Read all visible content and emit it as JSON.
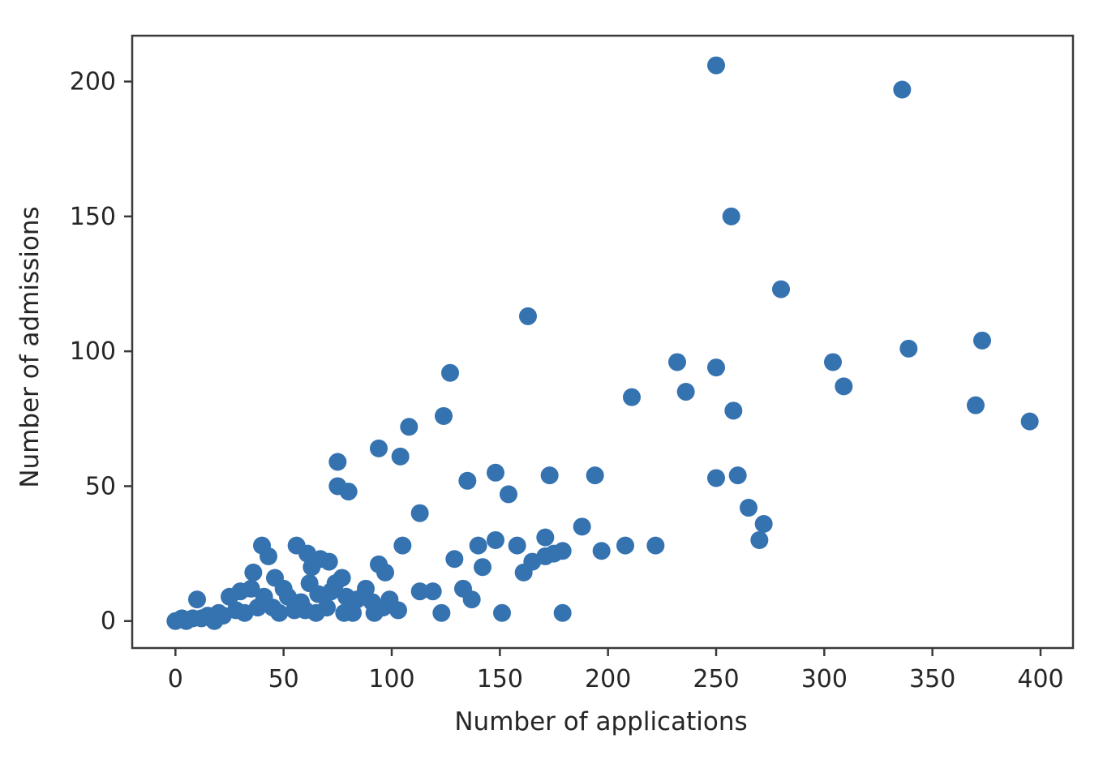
{
  "chart_data": {
    "type": "scatter",
    "xlabel": "Number of applications",
    "ylabel": "Number of admissions",
    "xlim": [
      -20,
      415
    ],
    "ylim": [
      -10,
      217
    ],
    "xticks": [
      0,
      50,
      100,
      150,
      200,
      250,
      300,
      350,
      400
    ],
    "yticks": [
      0,
      50,
      100,
      150,
      200
    ],
    "grid": false,
    "marker_color": "#3572b0",
    "series": [
      {
        "points": [
          [
            250,
            206
          ],
          [
            336,
            197
          ],
          [
            257,
            150
          ],
          [
            280,
            123
          ],
          [
            163,
            113
          ],
          [
            373,
            104
          ],
          [
            339,
            101
          ],
          [
            232,
            96
          ],
          [
            304,
            96
          ],
          [
            250,
            94
          ],
          [
            127,
            92
          ],
          [
            309,
            87
          ],
          [
            236,
            85
          ],
          [
            211,
            83
          ],
          [
            370,
            80
          ],
          [
            258,
            78
          ],
          [
            124,
            76
          ],
          [
            395,
            74
          ],
          [
            108,
            72
          ],
          [
            94,
            64
          ],
          [
            104,
            61
          ],
          [
            75,
            59
          ],
          [
            148,
            55
          ],
          [
            173,
            54
          ],
          [
            194,
            54
          ],
          [
            250,
            53
          ],
          [
            260,
            54
          ],
          [
            135,
            52
          ],
          [
            75,
            50
          ],
          [
            80,
            48
          ],
          [
            154,
            47
          ],
          [
            265,
            42
          ],
          [
            113,
            40
          ],
          [
            272,
            36
          ],
          [
            270,
            30
          ],
          [
            188,
            35
          ],
          [
            171,
            31
          ],
          [
            148,
            30
          ],
          [
            105,
            28
          ],
          [
            158,
            28
          ],
          [
            140,
            28
          ],
          [
            208,
            28
          ],
          [
            222,
            28
          ],
          [
            197,
            26
          ],
          [
            179,
            26
          ],
          [
            175,
            25
          ],
          [
            165,
            22
          ],
          [
            171,
            24
          ],
          [
            129,
            23
          ],
          [
            142,
            20
          ],
          [
            161,
            18
          ],
          [
            94,
            21
          ],
          [
            97,
            18
          ],
          [
            113,
            11
          ],
          [
            119,
            11
          ],
          [
            133,
            12
          ],
          [
            137,
            8
          ],
          [
            123,
            3
          ],
          [
            151,
            3
          ],
          [
            179,
            3
          ],
          [
            40,
            28
          ],
          [
            43,
            24
          ],
          [
            56,
            28
          ],
          [
            61,
            25
          ],
          [
            67,
            23
          ],
          [
            71,
            22
          ],
          [
            63,
            20
          ],
          [
            77,
            16
          ],
          [
            36,
            18
          ],
          [
            46,
            16
          ],
          [
            88,
            12
          ],
          [
            10,
            8
          ],
          [
            25,
            9
          ],
          [
            30,
            11
          ],
          [
            35,
            12
          ],
          [
            41,
            9
          ],
          [
            52,
            9
          ],
          [
            58,
            7
          ],
          [
            66,
            10
          ],
          [
            72,
            11
          ],
          [
            79,
            9
          ],
          [
            84,
            8
          ],
          [
            91,
            7
          ],
          [
            99,
            8
          ],
          [
            103,
            4
          ],
          [
            92,
            3
          ],
          [
            78,
            3
          ],
          [
            60,
            4
          ],
          [
            45,
            5
          ],
          [
            28,
            4
          ],
          [
            20,
            3
          ],
          [
            15,
            2
          ],
          [
            8,
            1
          ],
          [
            3,
            1
          ],
          [
            0,
            0
          ],
          [
            5,
            0
          ],
          [
            12,
            1
          ],
          [
            18,
            0
          ],
          [
            22,
            2
          ],
          [
            32,
            3
          ],
          [
            38,
            5
          ],
          [
            48,
            3
          ],
          [
            55,
            4
          ],
          [
            65,
            3
          ],
          [
            70,
            5
          ],
          [
            82,
            3
          ],
          [
            96,
            5
          ],
          [
            50,
            12
          ],
          [
            62,
            14
          ],
          [
            74,
            14
          ]
        ]
      }
    ]
  }
}
